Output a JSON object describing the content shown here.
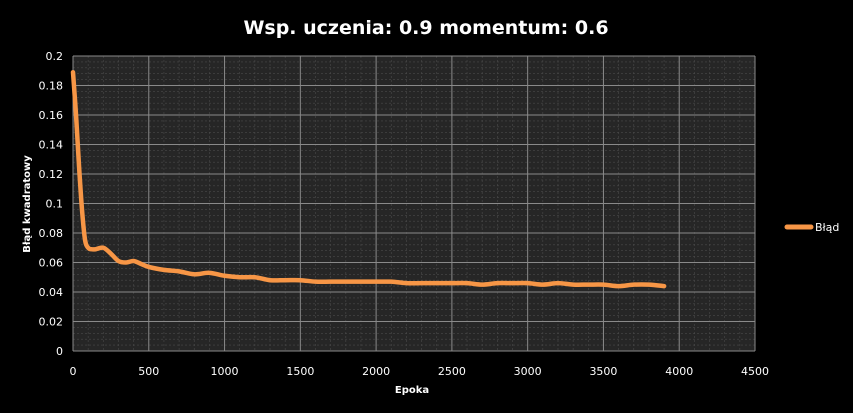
{
  "chart_data": {
    "type": "line",
    "title": "Wsp. uczenia: 0.9 momentum: 0.6",
    "xlabel": "Epoka",
    "ylabel": "Błąd kwadratowy",
    "xlim": [
      0,
      4500
    ],
    "ylim": [
      0,
      0.2
    ],
    "x_ticks": [
      0,
      500,
      1000,
      1500,
      2000,
      2500,
      3000,
      3500,
      4000,
      4500
    ],
    "y_ticks": [
      0,
      0.02,
      0.04,
      0.06,
      0.08,
      0.1,
      0.12,
      0.14,
      0.16,
      0.18,
      0.2
    ],
    "x_tick_labels": [
      "0",
      "500",
      "1000",
      "1500",
      "2000",
      "2500",
      "3000",
      "3500",
      "4000",
      "4500"
    ],
    "y_tick_labels": [
      "0",
      "0.02",
      "0.04",
      "0.06",
      "0.08",
      "0.1",
      "0.12",
      "0.14",
      "0.16",
      "0.18",
      "0.2"
    ],
    "grid": true,
    "legend_position": "right",
    "series": [
      {
        "name": "Błąd",
        "color": "#f79646",
        "x": [
          0,
          20,
          40,
          60,
          80,
          100,
          120,
          150,
          200,
          250,
          300,
          350,
          400,
          450,
          500,
          600,
          700,
          800,
          900,
          1000,
          1100,
          1200,
          1300,
          1400,
          1500,
          1600,
          1700,
          1800,
          1900,
          2000,
          2100,
          2200,
          2300,
          2400,
          2500,
          2600,
          2700,
          2800,
          2900,
          3000,
          3100,
          3200,
          3300,
          3400,
          3500,
          3600,
          3700,
          3800,
          3900
        ],
        "y": [
          0.189,
          0.16,
          0.125,
          0.095,
          0.075,
          0.07,
          0.069,
          0.069,
          0.07,
          0.066,
          0.061,
          0.06,
          0.061,
          0.059,
          0.057,
          0.055,
          0.054,
          0.052,
          0.053,
          0.051,
          0.05,
          0.05,
          0.048,
          0.048,
          0.048,
          0.047,
          0.047,
          0.047,
          0.047,
          0.047,
          0.047,
          0.046,
          0.046,
          0.046,
          0.046,
          0.046,
          0.045,
          0.046,
          0.046,
          0.046,
          0.045,
          0.046,
          0.045,
          0.045,
          0.045,
          0.044,
          0.045,
          0.045,
          0.044
        ]
      }
    ]
  }
}
